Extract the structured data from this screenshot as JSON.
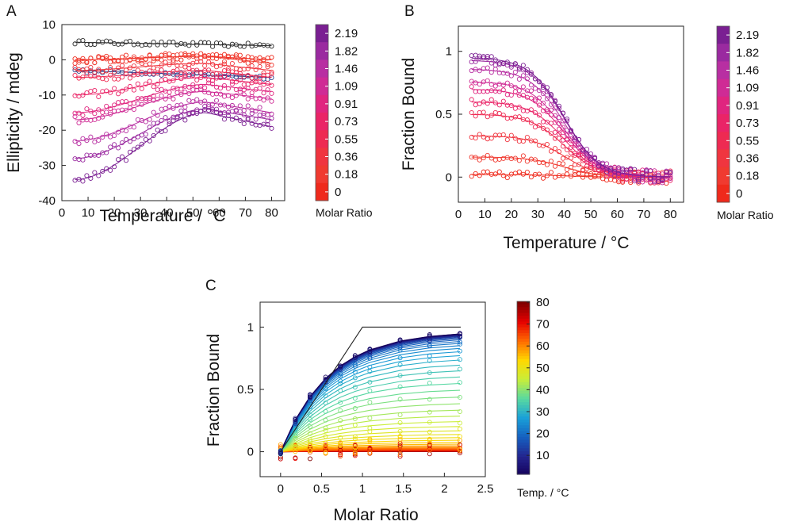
{
  "chart_data": [
    {
      "panel": "A",
      "type": "scatter",
      "xlabel": "Temperature / °C",
      "ylabel": "Ellipticity / mdeg",
      "xlim": [
        0,
        85
      ],
      "ylim": [
        -40,
        10
      ],
      "xticks": [
        0,
        10,
        20,
        30,
        40,
        50,
        60,
        70,
        80
      ],
      "yticks": [
        -40,
        -30,
        -20,
        -10,
        0,
        10
      ],
      "grid": false,
      "legend": "right",
      "colorbar": {
        "title": "Molar Ratio",
        "labels": [
          "2.19",
          "1.82",
          "1.46",
          "1.09",
          "0.91",
          "0.73",
          "0.55",
          "0.36",
          "0.18",
          "0"
        ],
        "colors": [
          "#7a1f92",
          "#9a2aa0",
          "#b82fa2",
          "#cf2b95",
          "#e0257f",
          "#ea2467",
          "#ee2a52",
          "#f0353f",
          "#f03a30",
          "#ef2a1c"
        ]
      },
      "series": [
        {
          "ratio": 2.19,
          "color": "#7a1f92",
          "start": -34,
          "end": -19,
          "peak": -15
        },
        {
          "ratio": 1.82,
          "color": "#9a2aa0",
          "start": -28,
          "end": -17,
          "peak": -14
        },
        {
          "ratio": 1.46,
          "color": "#b82fa2",
          "start": -23,
          "end": -15,
          "peak": -12
        },
        {
          "ratio": 1.09,
          "color": "#cf2b95",
          "start": -17,
          "end": -11,
          "peak": -9
        },
        {
          "ratio": 0.91,
          "color": "#e0257f",
          "start": -15,
          "end": -9,
          "peak": -7
        },
        {
          "ratio": 0.73,
          "color": "#ea2467",
          "start": -10,
          "end": -7,
          "peak": -5
        },
        {
          "ratio": 0.55,
          "color": "#ee2a52",
          "start": -5,
          "end": -5,
          "peak": -3
        },
        {
          "ratio": 0.36,
          "color": "#f0353f",
          "start": -3,
          "end": -3,
          "peak": -1
        },
        {
          "ratio": 0.18,
          "color": "#f03a30",
          "start": 0,
          "end": -1,
          "peak": 1
        },
        {
          "ratio": 0,
          "color": "#ef2a1c",
          "start": 0,
          "end": 0,
          "peak": 1
        }
      ],
      "extra_series": [
        {
          "color": "#2a2a2a",
          "start": 5,
          "end": 4
        },
        {
          "color": "#2b3f8c",
          "start": -3,
          "end": -5
        }
      ]
    },
    {
      "panel": "B",
      "type": "scatter",
      "xlabel": "Temperature / °C",
      "ylabel": "Fraction Bound",
      "xlim": [
        0,
        85
      ],
      "ylim": [
        -0.2,
        1.2
      ],
      "xticks": [
        0,
        10,
        20,
        30,
        40,
        50,
        60,
        70,
        80
      ],
      "yticks": [
        0,
        0.5,
        1
      ],
      "grid": false,
      "legend": "right",
      "colorbar": {
        "title": "Molar Ratio",
        "labels": [
          "2.19",
          "1.82",
          "1.46",
          "1.09",
          "0.91",
          "0.73",
          "0.55",
          "0.36",
          "0.18",
          "0"
        ],
        "colors": [
          "#7a1f92",
          "#9a2aa0",
          "#b82fa2",
          "#cf2b95",
          "#e0257f",
          "#ea2467",
          "#ee2a52",
          "#f0353f",
          "#f03a30",
          "#ef2a1c"
        ]
      },
      "tm_celsius": 40,
      "series": [
        {
          "ratio": 2.19,
          "plateau": 0.95
        },
        {
          "ratio": 1.82,
          "plateau": 0.93
        },
        {
          "ratio": 1.46,
          "plateau": 0.86
        },
        {
          "ratio": 1.09,
          "plateau": 0.76
        },
        {
          "ratio": 0.91,
          "plateau": 0.7
        },
        {
          "ratio": 0.73,
          "plateau": 0.6
        },
        {
          "ratio": 0.55,
          "plateau": 0.5
        },
        {
          "ratio": 0.36,
          "plateau": 0.33
        },
        {
          "ratio": 0.18,
          "plateau": 0.16
        },
        {
          "ratio": 0,
          "plateau": 0.02
        }
      ]
    },
    {
      "panel": "C",
      "type": "line",
      "xlabel": "Molar Ratio",
      "ylabel": "Fraction Bound",
      "xlim": [
        -0.25,
        2.5
      ],
      "ylim": [
        -0.2,
        1.2
      ],
      "xticks": [
        0,
        0.5,
        1,
        1.5,
        2,
        2.5
      ],
      "yticks": [
        0,
        0.5,
        1
      ],
      "grid": false,
      "legend": "right",
      "x": [
        0,
        0.18,
        0.36,
        0.55,
        0.73,
        0.91,
        1.09,
        1.46,
        1.82,
        2.19
      ],
      "stoichiometric_line": {
        "x": [
          0,
          1,
          2.2
        ],
        "y": [
          0,
          1,
          1
        ]
      },
      "temperatures": {
        "min": 5,
        "max": 80,
        "step": 1.5
      },
      "colorbar": {
        "title": "Temp. / °C",
        "range": [
          5,
          80
        ],
        "labels": [
          "80",
          "70",
          "60",
          "50",
          "40",
          "30",
          "20",
          "10"
        ],
        "ticks": [
          80,
          70,
          60,
          50,
          40,
          30,
          20,
          10
        ],
        "colormap": [
          "#7f0000",
          "#e60000",
          "#ff6a00",
          "#ffd800",
          "#c8ee3a",
          "#58d9a0",
          "#1aa0d8",
          "#1560c0",
          "#23258f",
          "#15005a"
        ]
      }
    }
  ],
  "panel_letters": [
    "A",
    "B",
    "C"
  ]
}
